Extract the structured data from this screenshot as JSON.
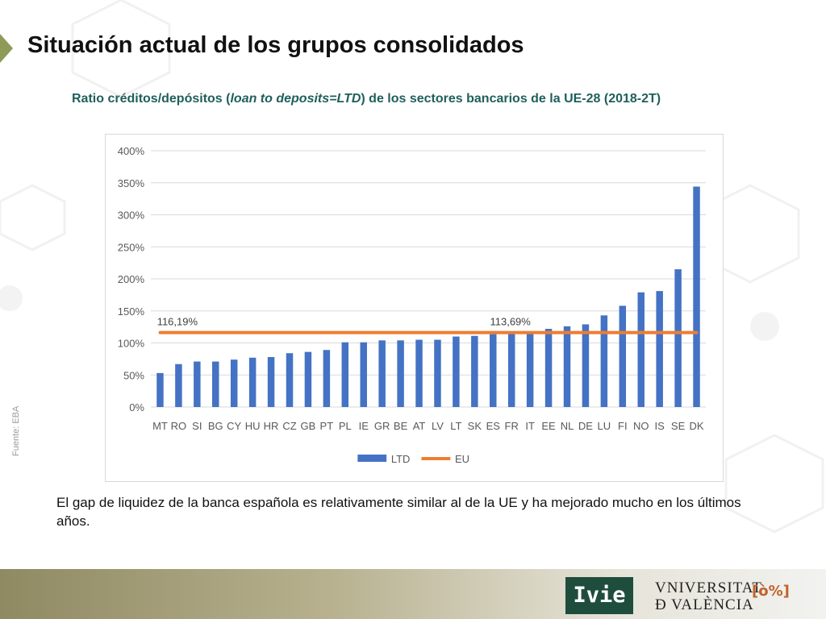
{
  "slide": {
    "title": "Situación actual de los grupos consolidados",
    "chart_heading_a": "Ratio créditos/depósitos (",
    "chart_heading_italic": "loan to deposits=LTD",
    "chart_heading_b": ") de los sectores bancarios de la UE-28 (2018-2T)",
    "source": "Fuente: EBA",
    "caption": "El gap de liquidez de la banca española es relativamente similar al de la UE y ha mejorado mucho en los últimos años."
  },
  "logos": {
    "ivie": "Ivie",
    "uv_line1": "VNIVERSITAT",
    "uv_line2": "Ð VALÈNCIA",
    "uv_seal": "[ò%]"
  },
  "colors": {
    "bar": "#4472c4",
    "eu_line": "#ed7d31",
    "heading": "#1f5f5b",
    "grid": "#d9d9d9",
    "footer": "#8f8a62",
    "ivie_bg": "#1f4d3d"
  },
  "chart_data": {
    "type": "bar",
    "categories": [
      "MT",
      "RO",
      "SI",
      "BG",
      "CY",
      "HU",
      "HR",
      "CZ",
      "GB",
      "PT",
      "PL",
      "IE",
      "GR",
      "BE",
      "AT",
      "LV",
      "LT",
      "SK",
      "ES",
      "FR",
      "IT",
      "EE",
      "NL",
      "DE",
      "LU",
      "FI",
      "NO",
      "IS",
      "SE",
      "DK"
    ],
    "series": [
      {
        "name": "LTD",
        "type": "bar",
        "values": [
          53,
          67,
          71,
          71,
          74,
          77,
          78,
          84,
          86,
          89,
          101,
          101,
          104,
          104,
          105,
          105,
          110,
          111,
          113.69,
          116,
          116,
          122,
          126,
          129,
          143,
          158,
          179,
          181,
          215,
          344
        ]
      },
      {
        "name": "EU",
        "type": "line",
        "values": [
          116.19,
          116.19,
          116.19,
          116.19,
          116.19,
          116.19,
          116.19,
          116.19,
          116.19,
          116.19,
          116.19,
          116.19,
          116.19,
          116.19,
          116.19,
          116.19,
          116.19,
          116.19,
          116.19,
          116.19,
          116.19,
          116.19,
          116.19,
          116.19,
          116.19,
          116.19,
          116.19,
          116.19,
          116.19,
          116.19
        ]
      }
    ],
    "yticks": [
      "0%",
      "50%",
      "100%",
      "150%",
      "200%",
      "250%",
      "300%",
      "350%",
      "400%"
    ],
    "ylim": [
      0,
      400
    ],
    "annotations": [
      {
        "category": "MT",
        "text": "116,19%"
      },
      {
        "category": "ES",
        "text": "113,69%"
      }
    ],
    "legend": {
      "position": "bottom",
      "entries": [
        "LTD",
        "EU"
      ]
    },
    "grid": true
  }
}
